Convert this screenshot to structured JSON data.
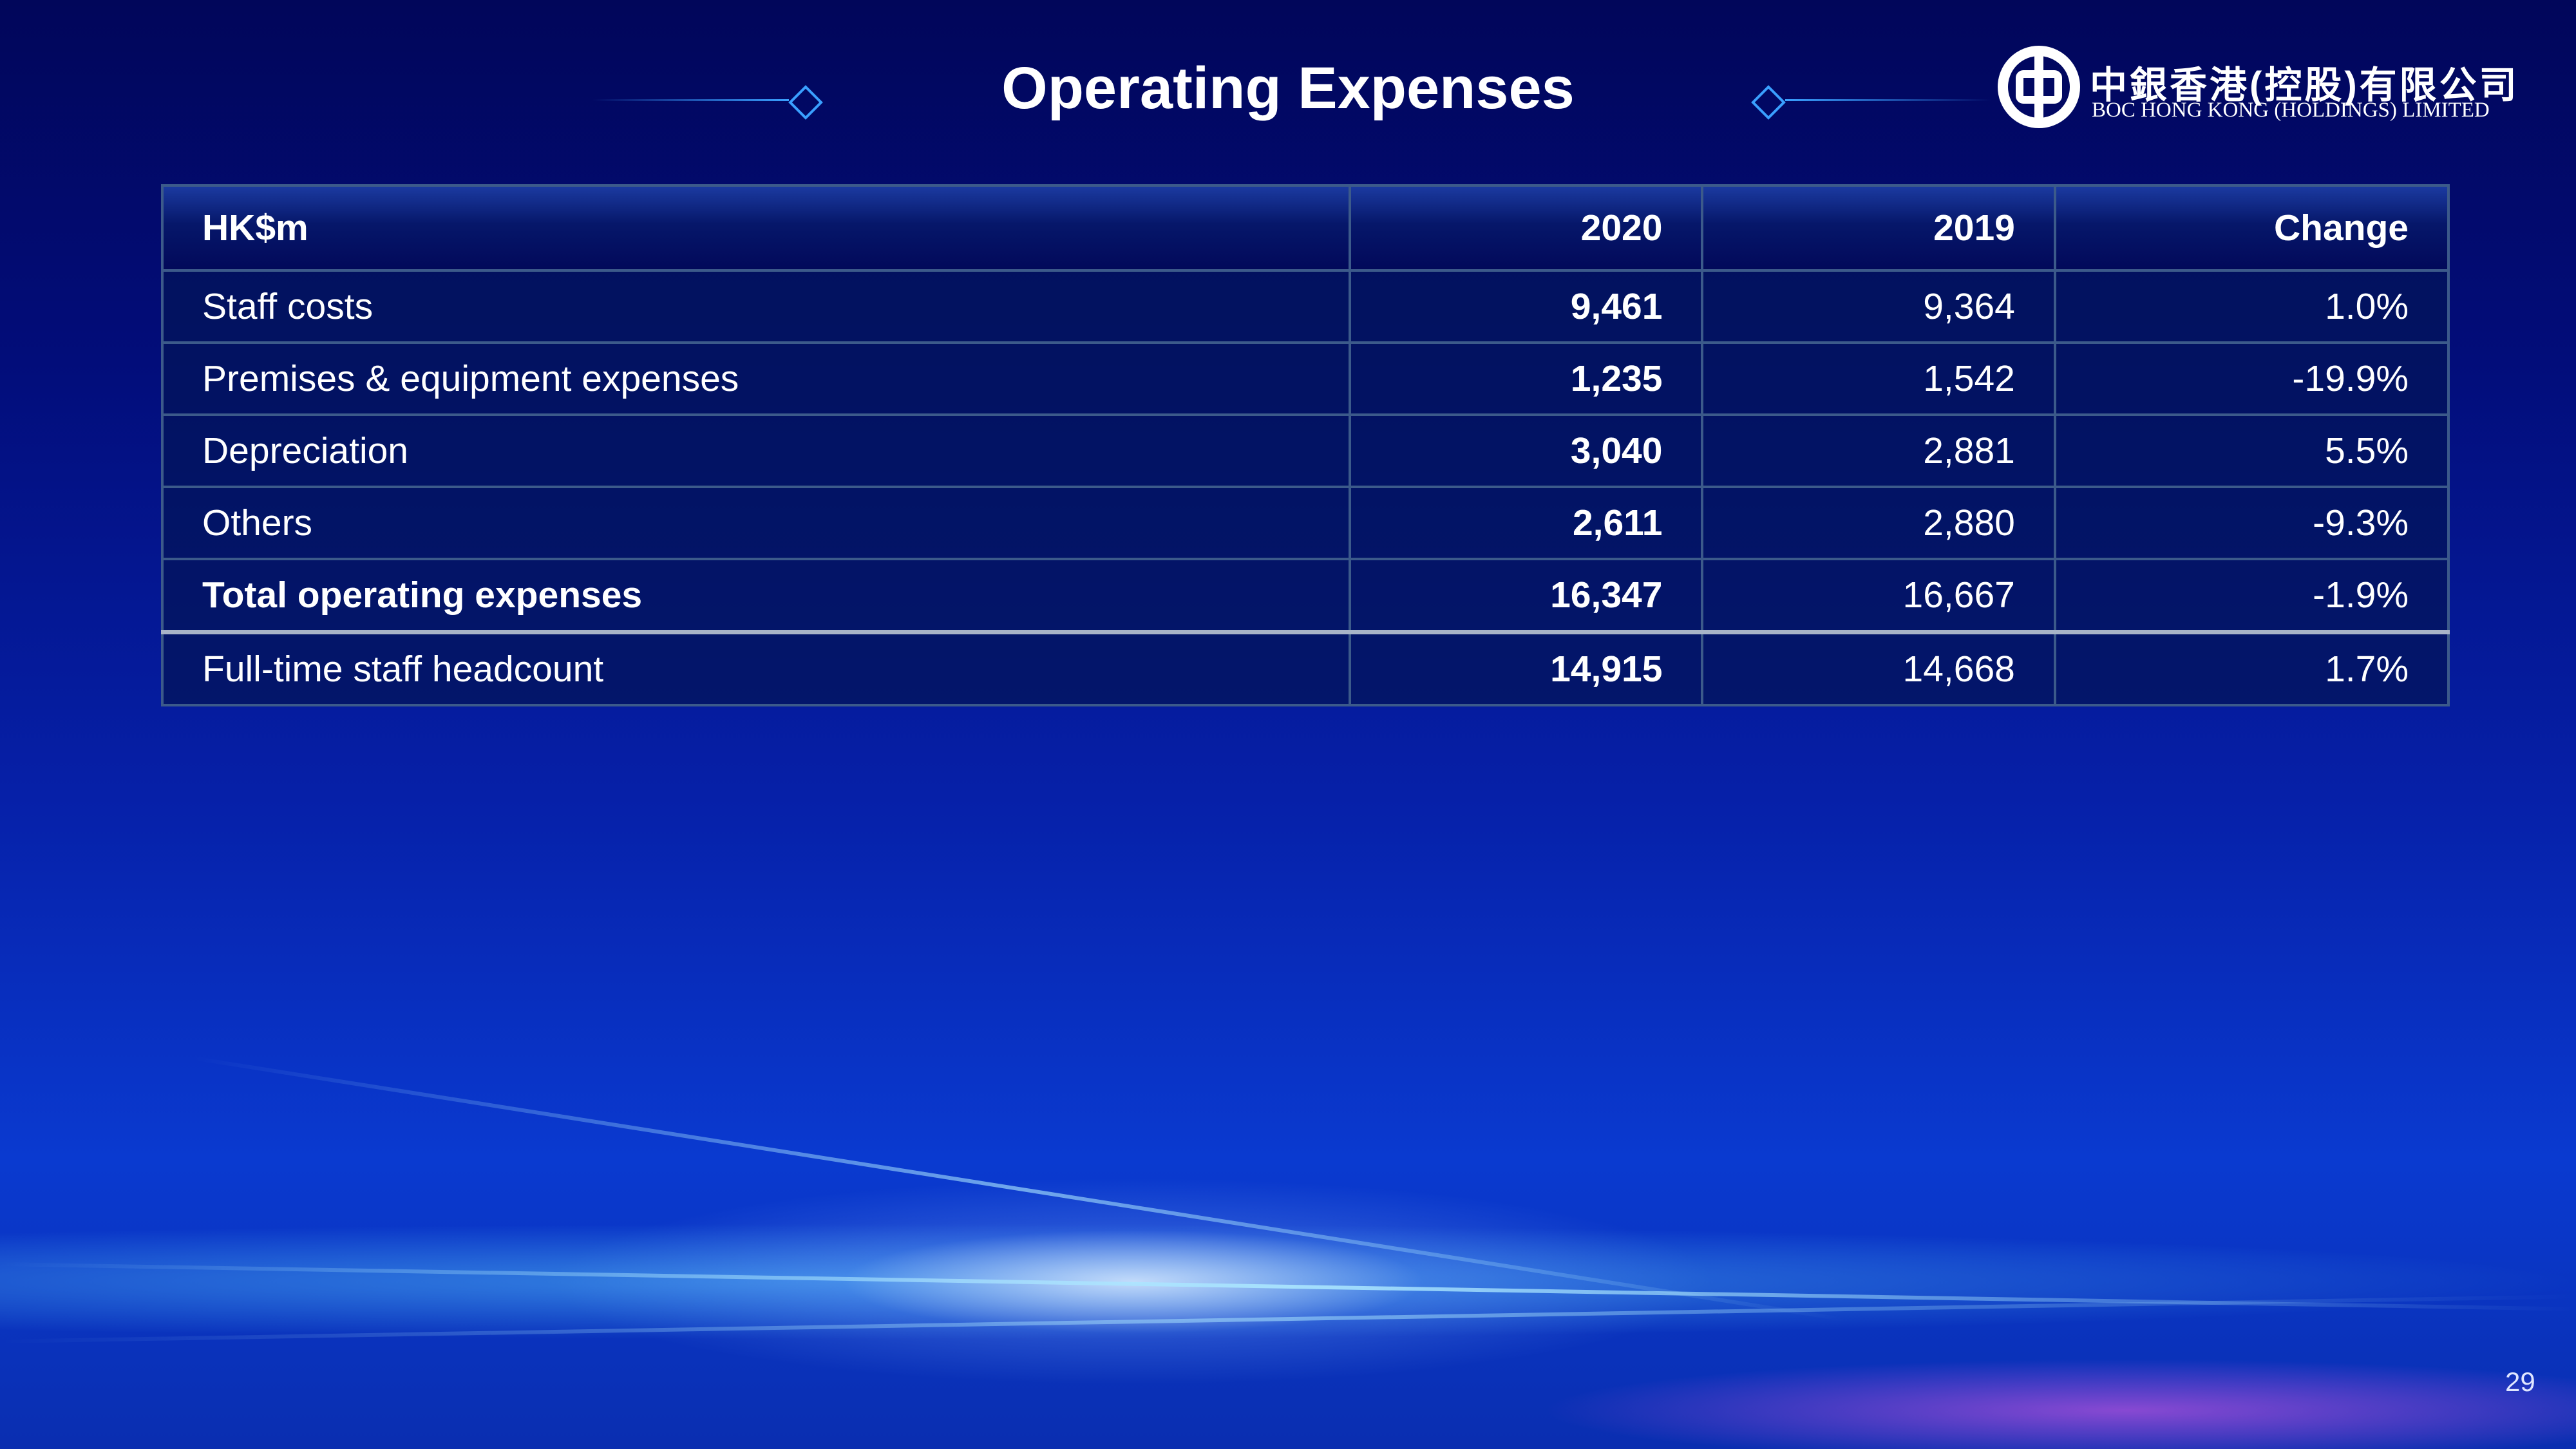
{
  "header": {
    "title": "Operating Expenses"
  },
  "logo": {
    "chinese": "中銀香港(控股)有限公司",
    "english": "BOC HONG KONG (HOLDINGS) LIMITED"
  },
  "table": {
    "columns": [
      "HK$m",
      "2020",
      "2019",
      "Change"
    ],
    "rows": [
      [
        "Staff costs",
        "9,461",
        "9,364",
        "1.0%"
      ],
      [
        "Premises & equipment expenses",
        "1,235",
        "1,542",
        "-19.9%"
      ],
      [
        "Depreciation",
        "3,040",
        "2,881",
        "5.5%"
      ],
      [
        "Others",
        "2,611",
        "2,880",
        "-9.3%"
      ],
      [
        "Total operating expenses",
        "16,347",
        "16,667",
        "-1.9%"
      ],
      [
        "Full-time staff headcount",
        "14,915",
        "14,668",
        "1.7%"
      ]
    ]
  },
  "page_number": "29"
}
